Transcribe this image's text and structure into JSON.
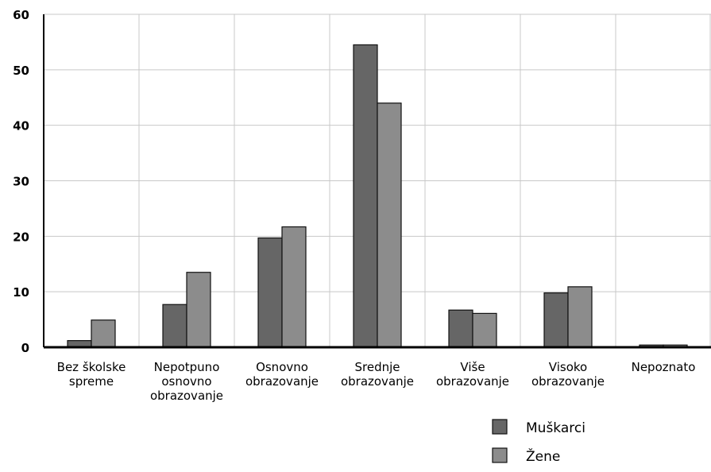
{
  "chart_data": {
    "type": "bar",
    "categories": [
      [
        "Bez školske",
        "spreme"
      ],
      [
        "Nepotpuno",
        "osnovno",
        "obrazovanje"
      ],
      [
        "Osnovno",
        "obrazovanje"
      ],
      [
        "Srednje",
        "obrazovanje"
      ],
      [
        "Više",
        "obrazovanje"
      ],
      [
        "Visoko",
        "obrazovanje"
      ],
      [
        "Nepoznato"
      ]
    ],
    "series": [
      {
        "name": "Muškarci",
        "color": "#666666",
        "values": [
          1.2,
          7.7,
          19.7,
          54.5,
          6.7,
          9.8,
          0.4
        ]
      },
      {
        "name": "Žene",
        "color": "#8c8c8c",
        "values": [
          4.9,
          13.5,
          21.7,
          44.0,
          6.1,
          10.9,
          0.4
        ]
      }
    ],
    "ylim": [
      0,
      60
    ],
    "yticks": [
      0,
      10,
      20,
      30,
      40,
      50,
      60
    ],
    "grid": true,
    "legend": "bottom-right",
    "title": "",
    "xlabel": "",
    "ylabel": ""
  }
}
